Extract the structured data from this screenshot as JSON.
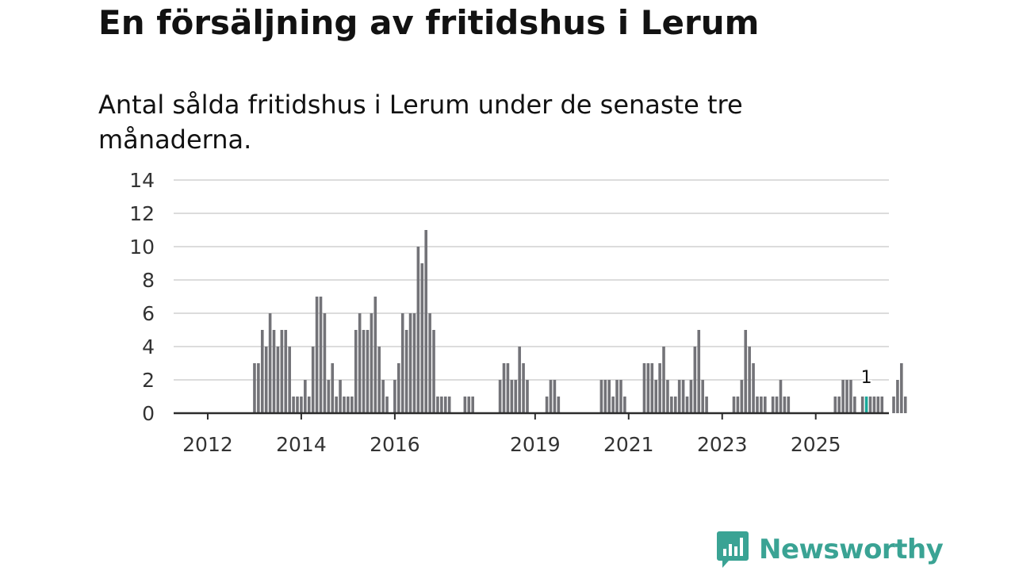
{
  "title": "En försäljning av fritidshus i Lerum",
  "subtitle": "Antal sålda fritidshus i Lerum under de senaste tre månaderna.",
  "brand": {
    "name": "Newsworthy",
    "color": "#3aa394",
    "icon": "newsworthy-logo-icon"
  },
  "colors": {
    "bar": "#737378",
    "highlight": "#19a89a"
  },
  "chart_data": {
    "type": "bar",
    "x_unit": "month",
    "start": "2012-03",
    "yticks": [
      0,
      2,
      4,
      6,
      8,
      10,
      12,
      14
    ],
    "ylim": [
      0,
      14
    ],
    "xticks": [
      "2012",
      "2014",
      "2016",
      "2019",
      "2021",
      "2023",
      "2025"
    ],
    "grid": true,
    "highlight": {
      "label": "1",
      "index": 167,
      "value": 1
    },
    "values": [
      0,
      0,
      0,
      0,
      0,
      0,
      0,
      0,
      0,
      0,
      3,
      3,
      5,
      4,
      6,
      5,
      4,
      5,
      5,
      4,
      1,
      1,
      1,
      2,
      1,
      4,
      7,
      7,
      6,
      2,
      3,
      1,
      2,
      1,
      1,
      1,
      5,
      6,
      5,
      5,
      6,
      7,
      4,
      2,
      1,
      0,
      2,
      3,
      6,
      5,
      6,
      6,
      10,
      9,
      11,
      6,
      5,
      1,
      1,
      1,
      1,
      0,
      0,
      0,
      1,
      1,
      1,
      0,
      0,
      0,
      0,
      0,
      0,
      2,
      3,
      3,
      2,
      2,
      4,
      3,
      2,
      0,
      0,
      0,
      0,
      1,
      2,
      2,
      1,
      0,
      0,
      0,
      0,
      0,
      0,
      0,
      0,
      0,
      0,
      2,
      2,
      2,
      1,
      2,
      2,
      1,
      0,
      0,
      0,
      0,
      3,
      3,
      3,
      2,
      3,
      4,
      2,
      1,
      1,
      2,
      2,
      1,
      2,
      4,
      5,
      2,
      1,
      0,
      0,
      0,
      0,
      0,
      0,
      1,
      1,
      2,
      5,
      4,
      3,
      1,
      1,
      1,
      0,
      1,
      1,
      2,
      1,
      1,
      0,
      0,
      0,
      0,
      0,
      0,
      0,
      0,
      0,
      0,
      0,
      1,
      1,
      2,
      2,
      2,
      1,
      0,
      1,
      1,
      1,
      1,
      1,
      1,
      0,
      0,
      1,
      2,
      3,
      1
    ]
  }
}
